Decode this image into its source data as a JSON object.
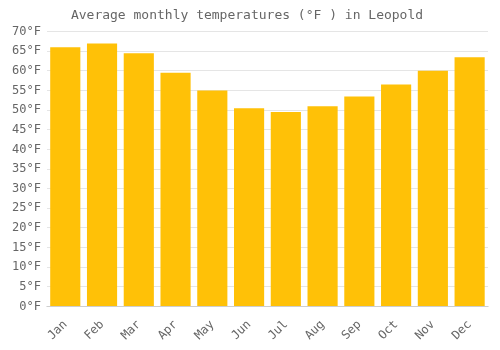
{
  "chart_data": {
    "type": "bar",
    "title": "Average monthly temperatures (°F ) in Leopold",
    "categories": [
      "Jan",
      "Feb",
      "Mar",
      "Apr",
      "May",
      "Jun",
      "Jul",
      "Aug",
      "Sep",
      "Oct",
      "Nov",
      "Dec"
    ],
    "values": [
      66,
      67,
      64.5,
      59.5,
      55,
      50.5,
      49.5,
      51,
      53.5,
      56.5,
      60,
      63.5
    ],
    "color": "#FFC107",
    "ylim": [
      0,
      70
    ],
    "yticks": [
      {
        "value": 0,
        "label": "0°F"
      },
      {
        "value": 5,
        "label": "5°F"
      },
      {
        "value": 10,
        "label": "10°F"
      },
      {
        "value": 15,
        "label": "15°F"
      },
      {
        "value": 20,
        "label": "20°F"
      },
      {
        "value": 25,
        "label": "25°F"
      },
      {
        "value": 30,
        "label": "30°F"
      },
      {
        "value": 35,
        "label": "35°F"
      },
      {
        "value": 40,
        "label": "40°F"
      },
      {
        "value": 45,
        "label": "45°F"
      },
      {
        "value": 50,
        "label": "50°F"
      },
      {
        "value": 55,
        "label": "55°F"
      },
      {
        "value": 60,
        "label": "60°F"
      },
      {
        "value": 65,
        "label": "65°F"
      },
      {
        "value": 70,
        "label": "70°F"
      }
    ],
    "grid": true
  }
}
